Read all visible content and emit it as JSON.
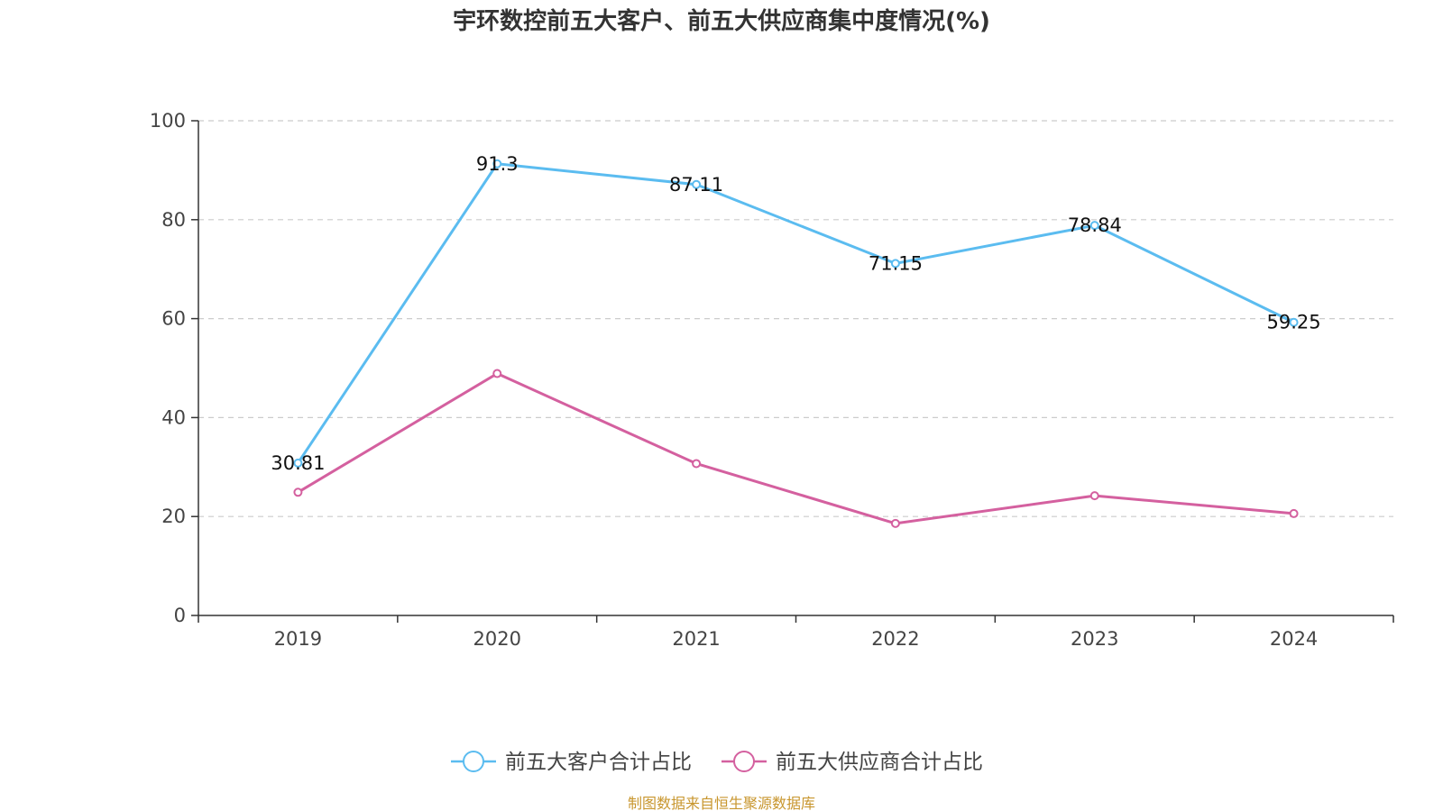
{
  "chart_data": {
    "type": "line",
    "title": "宇环数控前五大客户、前五大供应商集中度情况(%)",
    "categories": [
      "2019",
      "2020",
      "2021",
      "2022",
      "2023",
      "2024"
    ],
    "ylim": [
      0,
      100
    ],
    "yticks": [
      0,
      20,
      40,
      60,
      80,
      100
    ],
    "grid": true,
    "legend_position": "bottom-center",
    "series": [
      {
        "name": "前五大客户合计占比",
        "color": "#5bbcf0",
        "values": [
          30.81,
          91.3,
          87.11,
          71.15,
          78.84,
          59.25
        ],
        "labels": [
          "30.81",
          "91.3",
          "87.11",
          "71.15",
          "78.84",
          "59.25"
        ],
        "show_labels": true
      },
      {
        "name": "前五大供应商合计占比",
        "color": "#d4609f",
        "values": [
          24.9,
          48.9,
          30.7,
          18.6,
          24.2,
          20.6
        ],
        "show_labels": false
      }
    ],
    "source_note": "制图数据来自恒生聚源数据库"
  }
}
